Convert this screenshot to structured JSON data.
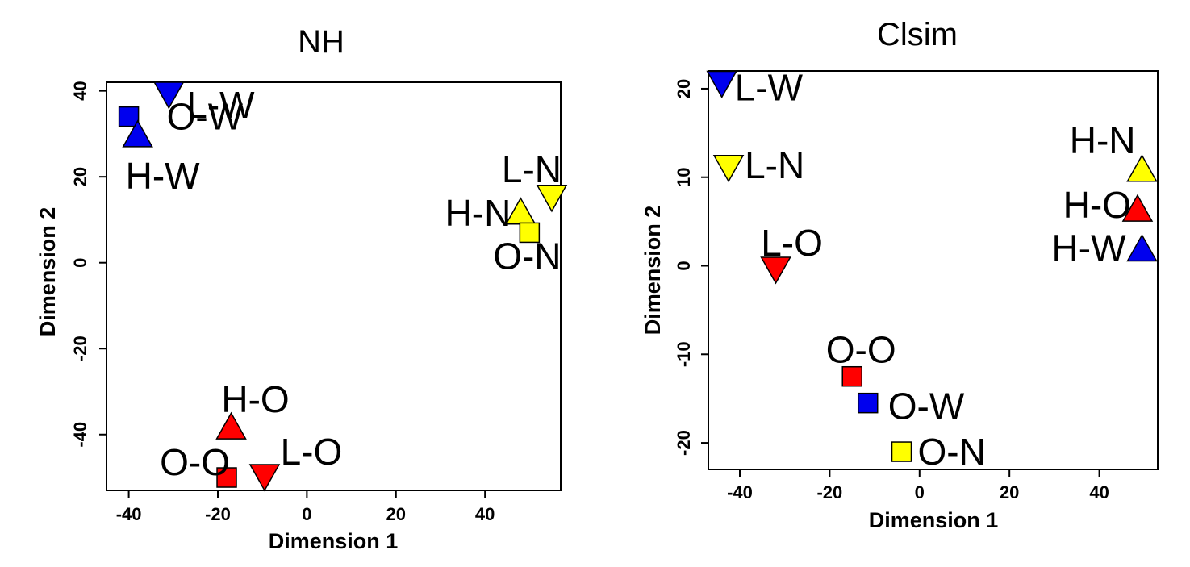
{
  "chart_data": [
    {
      "type": "scatter",
      "title": "NH",
      "xlabel": "Dimension 1",
      "ylabel": "Dimension 2",
      "xlim": [
        -45,
        57
      ],
      "ylim": [
        -53,
        42
      ],
      "xticks": [
        "-40",
        "-20",
        "0",
        "20",
        "40"
      ],
      "yticks": [
        "-40",
        "-20",
        "0",
        "20",
        "40"
      ],
      "grid": false,
      "points": [
        {
          "label": "L-W",
          "x": -31,
          "y": 39,
          "marker": "triangle-down",
          "color": "#0000ee"
        },
        {
          "label": "O-W",
          "x": -40,
          "y": 34,
          "marker": "square",
          "color": "#0000ee"
        },
        {
          "label": "H-W",
          "x": -38,
          "y": 30,
          "marker": "triangle-up",
          "color": "#0000ee"
        },
        {
          "label": "L-N",
          "x": 55,
          "y": 15,
          "marker": "triangle-down",
          "color": "#ffff00"
        },
        {
          "label": "H-N",
          "x": 48,
          "y": 12,
          "marker": "triangle-up",
          "color": "#ffff00"
        },
        {
          "label": "O-N",
          "x": 50,
          "y": 7,
          "marker": "square",
          "color": "#ffff00"
        },
        {
          "label": "H-O",
          "x": -17,
          "y": -38,
          "marker": "triangle-up",
          "color": "#ff0000"
        },
        {
          "label": "O-O",
          "x": -18,
          "y": -50,
          "marker": "square",
          "color": "#ff0000"
        },
        {
          "label": "L-O",
          "x": -9.5,
          "y": -50,
          "marker": "triangle-down",
          "color": "#ff0000"
        }
      ]
    },
    {
      "type": "scatter",
      "title": "Clsim",
      "xlabel": "Dimension 1",
      "ylabel": "Dimension 2",
      "xlim": [
        -47,
        53
      ],
      "ylim": [
        -23,
        22
      ],
      "xticks": [
        "-40",
        "-20",
        "0",
        "20",
        "40"
      ],
      "yticks": [
        "-20",
        "-10",
        "0",
        "10",
        "20"
      ],
      "grid": false,
      "points": [
        {
          "label": "L-W",
          "x": -44,
          "y": 20.5,
          "marker": "triangle-down",
          "color": "#0000ee"
        },
        {
          "label": "L-N",
          "x": -42.5,
          "y": 11,
          "marker": "triangle-down",
          "color": "#ffff00"
        },
        {
          "label": "L-O",
          "x": -32,
          "y": -0.5,
          "marker": "triangle-down",
          "color": "#ff0000"
        },
        {
          "label": "H-N",
          "x": 49.5,
          "y": 11,
          "marker": "triangle-up",
          "color": "#ffff00"
        },
        {
          "label": "H-O",
          "x": 48.5,
          "y": 6.5,
          "marker": "triangle-up",
          "color": "#ff0000"
        },
        {
          "label": "H-W",
          "x": 49.5,
          "y": 2,
          "marker": "triangle-up",
          "color": "#0000ee"
        },
        {
          "label": "O-O",
          "x": -15,
          "y": -12.5,
          "marker": "square",
          "color": "#ff0000"
        },
        {
          "label": "O-W",
          "x": -11.5,
          "y": -15.5,
          "marker": "square",
          "color": "#0000ee"
        },
        {
          "label": "O-N",
          "x": -4,
          "y": -21,
          "marker": "square",
          "color": "#ffff00"
        }
      ]
    }
  ]
}
